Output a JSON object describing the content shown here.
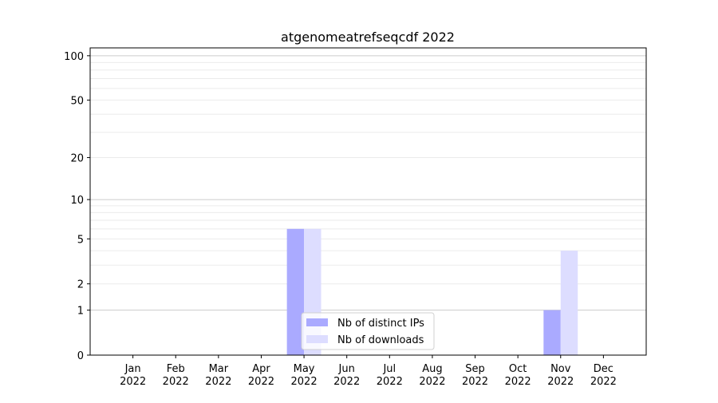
{
  "chart_data": {
    "type": "bar",
    "title": "atgenomeatrefseqcdf 2022",
    "xlabel": "",
    "ylabel": "",
    "y_scale": "log10(1+y)",
    "ylim": [
      0,
      113
    ],
    "xlim": [
      -1,
      12
    ],
    "y_ticks": [
      0,
      1,
      2,
      5,
      10,
      20,
      50,
      100
    ],
    "grid": "horizontal major and minor",
    "categories": [
      "Jan\n2022",
      "Feb\n2022",
      "Mar\n2022",
      "Apr\n2022",
      "May\n2022",
      "Jun\n2022",
      "Jul\n2022",
      "Aug\n2022",
      "Sep\n2022",
      "Oct\n2022",
      "Nov\n2022",
      "Dec\n2022"
    ],
    "series": [
      {
        "name": "Nb of distinct IPs",
        "color": "#aaaaff",
        "values": [
          0,
          0,
          0,
          0,
          6,
          0,
          0,
          0,
          0,
          0,
          1,
          0
        ]
      },
      {
        "name": "Nb of downloads",
        "color": "#ddddff",
        "values": [
          0,
          0,
          0,
          0,
          6,
          0,
          0,
          0,
          0,
          0,
          4,
          0
        ]
      }
    ],
    "legend_position": "lower center"
  }
}
